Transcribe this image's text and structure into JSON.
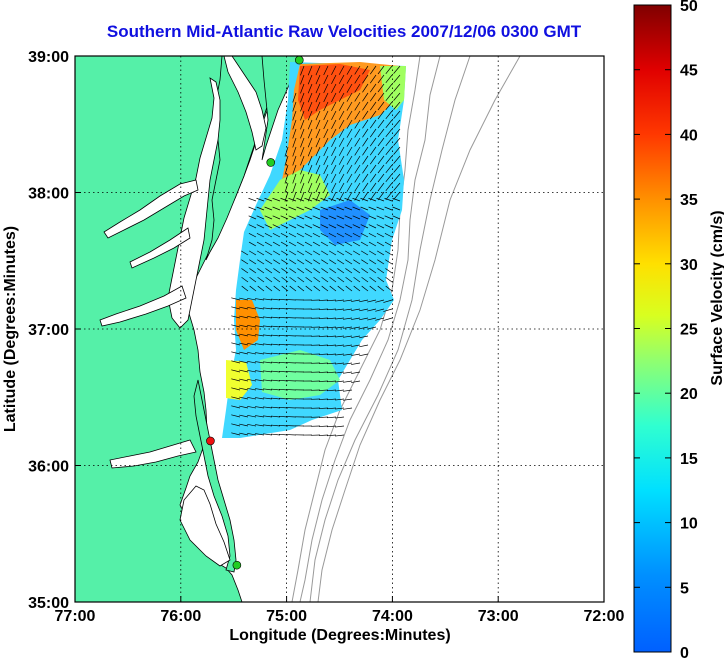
{
  "title": "Southern Mid-Atlantic Raw Velocities 2007/12/06 0300 GMT",
  "map": {
    "xlabel": "Longitude (Degrees:Minutes)",
    "ylabel": "Latitude (Degrees:Minutes)",
    "x_ticks": [
      "77:00",
      "76:00",
      "75:00",
      "74:00",
      "73:00",
      "72:00"
    ],
    "y_ticks": [
      "39:00",
      "38:00",
      "37:00",
      "36:00",
      "35:00"
    ],
    "lon_range": [
      -77,
      -72
    ],
    "lat_range": [
      35,
      39
    ],
    "grid": true
  },
  "colorbar": {
    "label": "Surface Velocity (cm/s)",
    "ticks": [
      "0",
      "5",
      "10",
      "15",
      "20",
      "25",
      "30",
      "35",
      "40",
      "45",
      "50"
    ],
    "range": [
      0,
      50
    ],
    "colormap": "jet"
  },
  "colors": {
    "land": "#55f0a8",
    "water": "#ffffff",
    "title": "#1010e0",
    "bathymetry": "#999999"
  },
  "stations": [
    {
      "name": "station-north",
      "lon": -74.88,
      "lat": 38.97,
      "color": "#22cc22"
    },
    {
      "name": "station-cape-may",
      "lon": -75.15,
      "lat": 38.22,
      "color": "#22cc22"
    },
    {
      "name": "station-duck",
      "lon": -75.72,
      "lat": 36.18,
      "color": "#ee1111"
    },
    {
      "name": "station-hatteras",
      "lon": -75.47,
      "lat": 35.27,
      "color": "#22cc22"
    }
  ]
}
